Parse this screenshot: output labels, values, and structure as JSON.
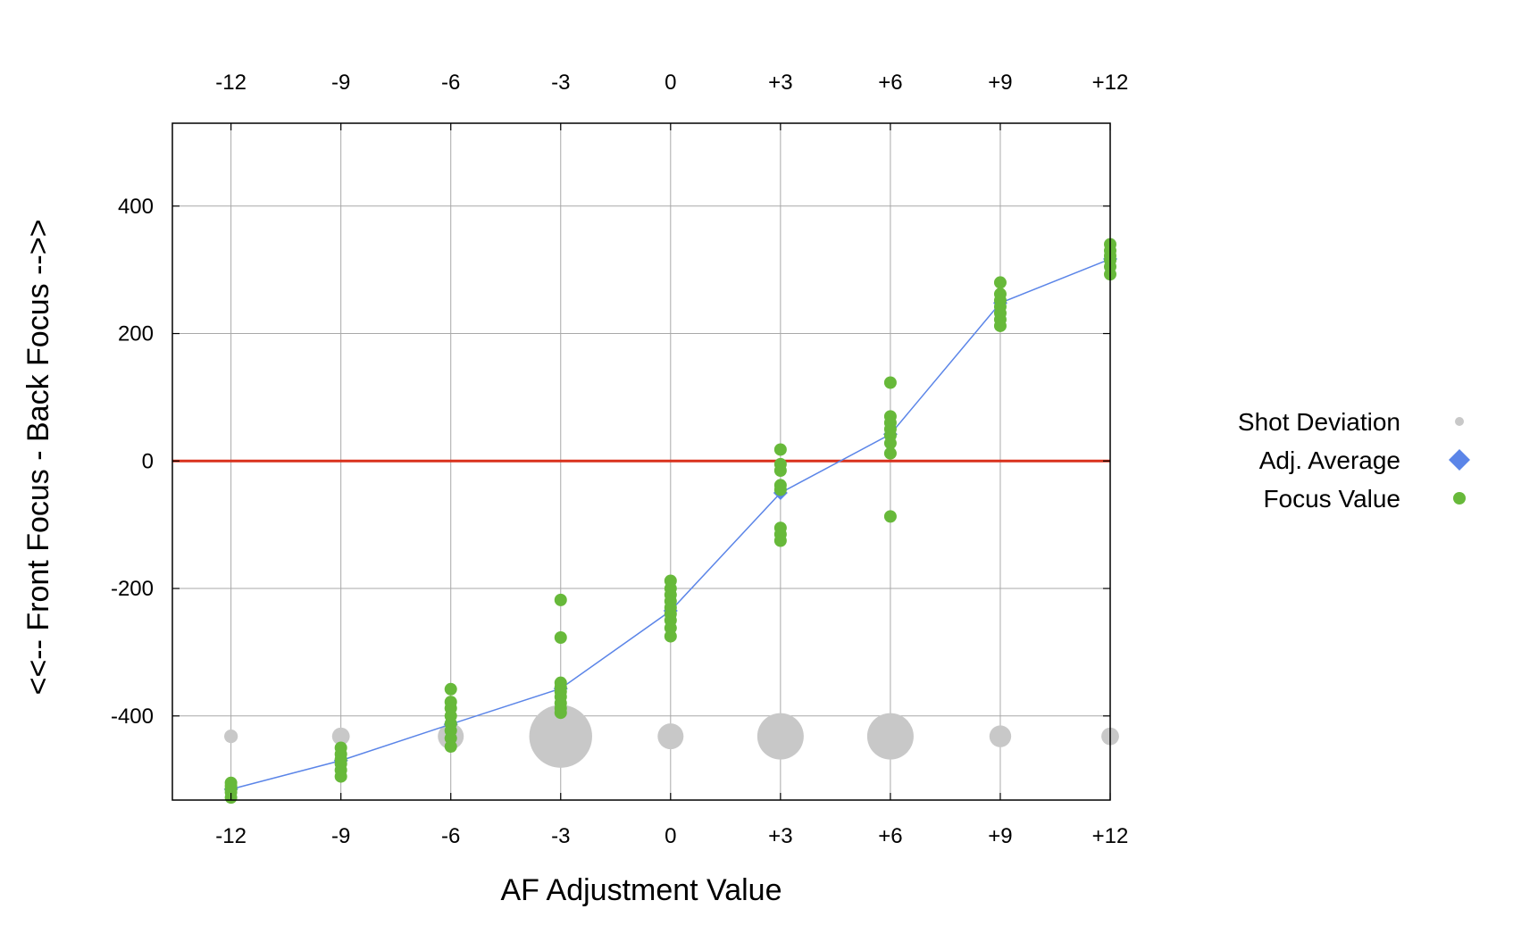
{
  "chart_data": {
    "type": "scatter",
    "title": "",
    "xlabel": "AF Adjustment Value",
    "ylabel": "<<-- Front Focus - Back Focus -->>",
    "xlim": [
      -13.6,
      12
    ],
    "ylim": [
      -532,
      530
    ],
    "x_ticks": [
      -12,
      -9,
      -6,
      -3,
      0,
      3,
      6,
      9,
      12
    ],
    "x_tick_labels": [
      "-12",
      "-9",
      "-6",
      "-3",
      "0",
      "+3",
      "+6",
      "+9",
      "+12"
    ],
    "y_ticks": [
      -400,
      -200,
      0,
      200,
      400
    ],
    "y_tick_labels": [
      "-400",
      "-200",
      "0",
      "200",
      "400"
    ],
    "grid": true,
    "legend_position": "right",
    "reference_line": {
      "y": 0,
      "color": "#d9311c"
    },
    "series": [
      {
        "name": "Shot Deviation",
        "color": "#c8c8c8",
        "marker": "circle",
        "baseline_y": -432,
        "x": [
          -12,
          -9,
          -6,
          -3,
          0,
          3,
          6,
          9,
          12
        ],
        "deviation": [
          2,
          3,
          5,
          14,
          5,
          10,
          10,
          4,
          3
        ]
      },
      {
        "name": "Adj. Average",
        "color": "#5b85e8",
        "marker": "diamond",
        "x": [
          -12,
          -9,
          -6,
          -3,
          0,
          3,
          6,
          9,
          12
        ],
        "y": [
          -515,
          -470,
          -413,
          -357,
          -235,
          -50,
          42,
          248,
          317
        ]
      },
      {
        "name": "Focus Value",
        "color": "#67b93a",
        "marker": "circle",
        "points": [
          [
            -12,
            -505
          ],
          [
            -12,
            -510
          ],
          [
            -12,
            -515
          ],
          [
            -12,
            -520
          ],
          [
            -12,
            -528
          ],
          [
            -9,
            -450
          ],
          [
            -9,
            -460
          ],
          [
            -9,
            -468
          ],
          [
            -9,
            -475
          ],
          [
            -9,
            -485
          ],
          [
            -9,
            -495
          ],
          [
            -6,
            -358
          ],
          [
            -6,
            -378
          ],
          [
            -6,
            -388
          ],
          [
            -6,
            -400
          ],
          [
            -6,
            -412
          ],
          [
            -6,
            -423
          ],
          [
            -6,
            -435
          ],
          [
            -6,
            -448
          ],
          [
            -3,
            -218
          ],
          [
            -3,
            -277
          ],
          [
            -3,
            -348
          ],
          [
            -3,
            -355
          ],
          [
            -3,
            -362
          ],
          [
            -3,
            -370
          ],
          [
            -3,
            -380
          ],
          [
            -3,
            -388
          ],
          [
            -3,
            -395
          ],
          [
            0,
            -188
          ],
          [
            0,
            -200
          ],
          [
            0,
            -210
          ],
          [
            0,
            -220
          ],
          [
            0,
            -230
          ],
          [
            0,
            -240
          ],
          [
            0,
            -250
          ],
          [
            0,
            -262
          ],
          [
            0,
            -275
          ],
          [
            3,
            18
          ],
          [
            3,
            -5
          ],
          [
            3,
            -15
          ],
          [
            3,
            -38
          ],
          [
            3,
            -45
          ],
          [
            3,
            -105
          ],
          [
            3,
            -115
          ],
          [
            3,
            -125
          ],
          [
            6,
            123
          ],
          [
            6,
            70
          ],
          [
            6,
            60
          ],
          [
            6,
            50
          ],
          [
            6,
            40
          ],
          [
            6,
            28
          ],
          [
            6,
            12
          ],
          [
            6,
            -87
          ],
          [
            9,
            280
          ],
          [
            9,
            262
          ],
          [
            9,
            252
          ],
          [
            9,
            242
          ],
          [
            9,
            232
          ],
          [
            9,
            222
          ],
          [
            9,
            212
          ],
          [
            12,
            340
          ],
          [
            12,
            330
          ],
          [
            12,
            322
          ],
          [
            12,
            315
          ],
          [
            12,
            305
          ],
          [
            12,
            293
          ]
        ]
      }
    ]
  }
}
